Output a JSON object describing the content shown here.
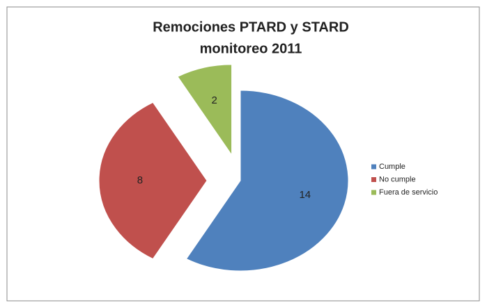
{
  "chart_data": {
    "type": "pie",
    "title": [
      "Remociones  PTARD y STARD",
      "monitoreo 2011"
    ],
    "categories": [
      "Cumple",
      "No cumple",
      "Fuera de servicio"
    ],
    "values": [
      14,
      8,
      2
    ],
    "colors": [
      "#4f81bd",
      "#c0504d",
      "#9bbb59"
    ],
    "legend": "right"
  }
}
